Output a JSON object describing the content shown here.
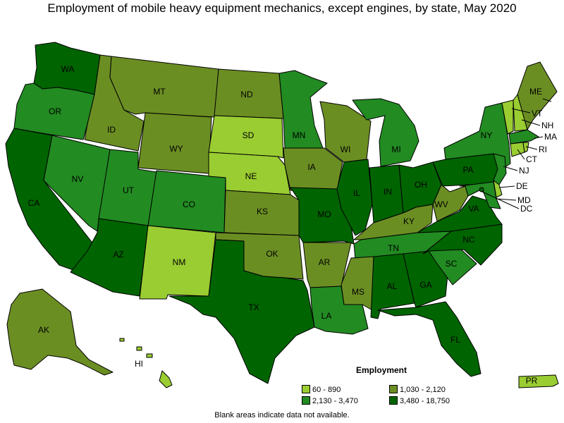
{
  "title": "Employment of mobile heavy equipment mechanics, except engines, by state, May 2020",
  "legend": {
    "title": "Employment",
    "items": [
      {
        "label": "60 - 890",
        "color": "#9acd32"
      },
      {
        "label": "1,030 - 2,120",
        "color": "#6b8e23"
      },
      {
        "label": "2,130 - 3,470",
        "color": "#228b22"
      },
      {
        "label": "3,480 - 18,750",
        "color": "#006400"
      }
    ]
  },
  "footnote": "Blank areas indicate data not available.",
  "states": [
    {
      "code": "WA",
      "level": 3
    },
    {
      "code": "OR",
      "level": 2
    },
    {
      "code": "CA",
      "level": 3
    },
    {
      "code": "NV",
      "level": 2
    },
    {
      "code": "ID",
      "level": 1
    },
    {
      "code": "MT",
      "level": 1
    },
    {
      "code": "WY",
      "level": 1
    },
    {
      "code": "UT",
      "level": 2
    },
    {
      "code": "AZ",
      "level": 3
    },
    {
      "code": "CO",
      "level": 2
    },
    {
      "code": "NM",
      "level": 0
    },
    {
      "code": "ND",
      "level": 1
    },
    {
      "code": "SD",
      "level": 0
    },
    {
      "code": "NE",
      "level": 0
    },
    {
      "code": "KS",
      "level": 1
    },
    {
      "code": "OK",
      "level": 1
    },
    {
      "code": "TX",
      "level": 3
    },
    {
      "code": "MN",
      "level": 2
    },
    {
      "code": "IA",
      "level": 1
    },
    {
      "code": "MO",
      "level": 3
    },
    {
      "code": "AR",
      "level": 1
    },
    {
      "code": "LA",
      "level": 2
    },
    {
      "code": "WI",
      "level": 1
    },
    {
      "code": "IL",
      "level": 3
    },
    {
      "code": "MI",
      "level": 2
    },
    {
      "code": "IN",
      "level": 3
    },
    {
      "code": "OH",
      "level": 3
    },
    {
      "code": "KY",
      "level": 1
    },
    {
      "code": "TN",
      "level": 2
    },
    {
      "code": "MS",
      "level": 1
    },
    {
      "code": "AL",
      "level": 3
    },
    {
      "code": "GA",
      "level": 3
    },
    {
      "code": "FL",
      "level": 3
    },
    {
      "code": "SC",
      "level": 2
    },
    {
      "code": "NC",
      "level": 3
    },
    {
      "code": "VA",
      "level": 3
    },
    {
      "code": "WV",
      "level": 1
    },
    {
      "code": "PA",
      "level": 3
    },
    {
      "code": "NY",
      "level": 2
    },
    {
      "code": "VT",
      "level": 0
    },
    {
      "code": "NH",
      "level": 0
    },
    {
      "code": "ME",
      "level": 1
    },
    {
      "code": "MA",
      "level": 2
    },
    {
      "code": "RI",
      "level": 0
    },
    {
      "code": "CT",
      "level": 0
    },
    {
      "code": "NJ",
      "level": 2
    },
    {
      "code": "DE",
      "level": 0
    },
    {
      "code": "MD",
      "level": 2
    },
    {
      "code": "DC",
      "level": 3
    },
    {
      "code": "AK",
      "level": 1
    },
    {
      "code": "HI",
      "level": 0
    },
    {
      "code": "PR",
      "level": 0
    }
  ]
}
